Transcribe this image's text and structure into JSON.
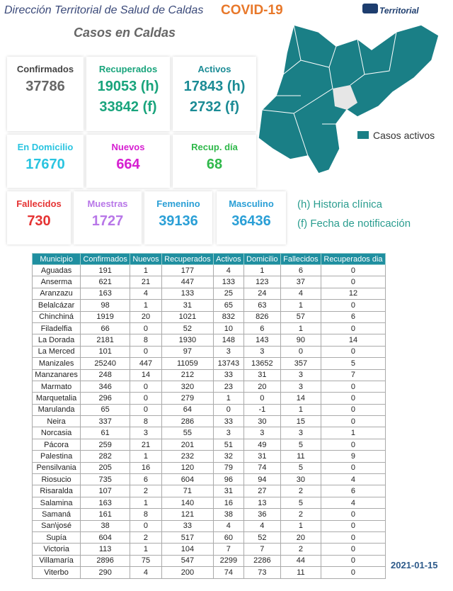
{
  "header": {
    "title": "Dirección Territorial de Salud de Caldas",
    "subject": "COVID-19",
    "logo": "Territorial"
  },
  "summary": {
    "title": "Casos en Caldas",
    "cards": [
      {
        "label": "Confirmados",
        "values": [
          "37786"
        ]
      },
      {
        "label": "Recuperados",
        "values": [
          "19053 (h)",
          "33842 (f)"
        ]
      },
      {
        "label": "Activos",
        "values": [
          "17843 (h)",
          "2732 (f)"
        ]
      },
      {
        "label": "En Domicilio",
        "values": [
          "17670"
        ]
      },
      {
        "label": "Nuevos",
        "values": [
          "664"
        ]
      },
      {
        "label": "Recup. día",
        "values": [
          "68"
        ]
      },
      {
        "label": "Fallecidos",
        "values": [
          "730"
        ]
      },
      {
        "label": "Muestras",
        "values": [
          "1727"
        ]
      },
      {
        "label": "Femenino",
        "values": [
          "39136"
        ]
      },
      {
        "label": "Masculino",
        "values": [
          "36436"
        ]
      }
    ]
  },
  "map": {
    "legend": "Casos activos"
  },
  "notes": [
    "(h) Historia clínica",
    "(f) Fecha de notificación"
  ],
  "table": {
    "columns": [
      "Municipio",
      "Confirmados",
      "Nuevos",
      "Recuperados",
      "Activos",
      "Domicilio",
      "Fallecidos",
      "Recuperados dia"
    ],
    "rows": [
      [
        "Aguadas",
        191,
        1,
        177,
        4,
        1,
        6,
        0
      ],
      [
        "Anserma",
        621,
        21,
        447,
        133,
        123,
        37,
        0
      ],
      [
        "Aranzazu",
        163,
        4,
        133,
        25,
        24,
        4,
        12
      ],
      [
        "Belalcázar",
        98,
        1,
        31,
        65,
        63,
        1,
        0
      ],
      [
        "Chinchiná",
        1919,
        20,
        1021,
        832,
        826,
        57,
        6
      ],
      [
        "Filadelfia",
        66,
        0,
        52,
        10,
        6,
        1,
        0
      ],
      [
        "La Dorada",
        2181,
        8,
        1930,
        148,
        143,
        90,
        14
      ],
      [
        "La Merced",
        101,
        0,
        97,
        3,
        3,
        0,
        0
      ],
      [
        "Manizales",
        25240,
        447,
        11059,
        13743,
        13652,
        357,
        5
      ],
      [
        "Manzanares",
        248,
        14,
        212,
        33,
        31,
        3,
        7
      ],
      [
        "Marmato",
        346,
        0,
        320,
        23,
        20,
        3,
        0
      ],
      [
        "Marquetalia",
        296,
        0,
        279,
        1,
        0,
        14,
        0
      ],
      [
        "Marulanda",
        65,
        0,
        64,
        0,
        -1,
        1,
        0
      ],
      [
        "Neira",
        337,
        8,
        286,
        33,
        30,
        15,
        0
      ],
      [
        "Norcasia",
        61,
        3,
        55,
        3,
        3,
        3,
        1
      ],
      [
        "Pácora",
        259,
        21,
        201,
        51,
        49,
        5,
        0
      ],
      [
        "Palestina",
        282,
        1,
        232,
        32,
        31,
        11,
        9
      ],
      [
        "Pensilvania",
        205,
        16,
        120,
        79,
        74,
        5,
        0
      ],
      [
        "Riosucio",
        735,
        6,
        604,
        96,
        94,
        30,
        4
      ],
      [
        "Risaralda",
        107,
        2,
        71,
        31,
        27,
        2,
        6
      ],
      [
        "Salamina",
        163,
        1,
        140,
        16,
        13,
        5,
        4
      ],
      [
        "Samaná",
        161,
        8,
        121,
        38,
        36,
        2,
        0
      ],
      [
        "San\\josé",
        38,
        0,
        33,
        4,
        4,
        1,
        0
      ],
      [
        "Supía",
        604,
        2,
        517,
        60,
        52,
        20,
        0
      ],
      [
        "Victoria",
        113,
        1,
        104,
        7,
        7,
        2,
        0
      ],
      [
        "Villamaría",
        2896,
        75,
        547,
        2299,
        2286,
        44,
        0
      ],
      [
        "Viterbo",
        290,
        4,
        200,
        74,
        73,
        11,
        0
      ]
    ]
  },
  "date": "2021-01-15"
}
